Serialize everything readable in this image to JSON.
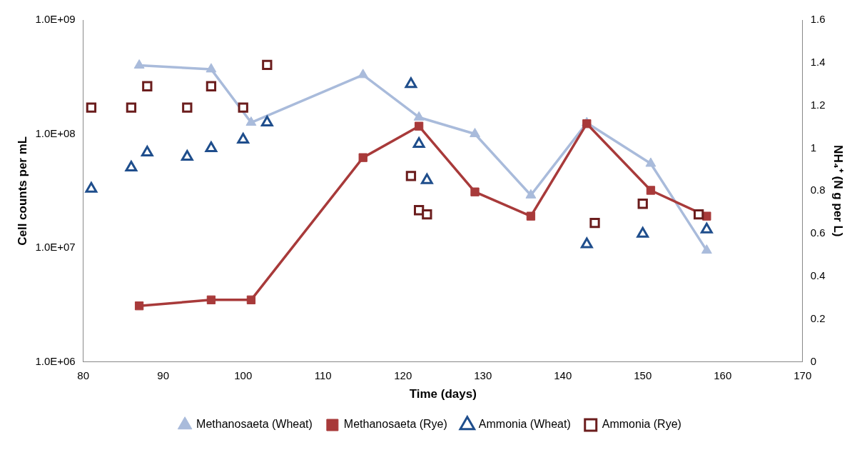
{
  "chart_data": {
    "type": "line",
    "xlabel": "Time (days)",
    "ylabel": "Cell counts per mL",
    "y2label": "NH₄⁺ (N g per L)",
    "xlim": [
      80,
      170
    ],
    "xticks": [
      80,
      90,
      100,
      110,
      120,
      130,
      140,
      150,
      160,
      170
    ],
    "log": "y",
    "ylim": [
      1000000,
      1000000000
    ],
    "yticks": [
      {
        "value": 1000000,
        "label": "1.0E+06"
      },
      {
        "value": 10000000,
        "label": "1.0E+07"
      },
      {
        "value": 100000000,
        "label": "1.0E+08"
      },
      {
        "value": 1000000000,
        "label": "1.0E+09"
      }
    ],
    "y2lim": [
      0,
      1.6
    ],
    "y2ticks": [
      0,
      0.2,
      0.4,
      0.6,
      0.8,
      1,
      1.2,
      1.4,
      1.6
    ],
    "grid": false,
    "legend": "bottom",
    "series": [
      {
        "name": "Methanosaeta (Wheat)",
        "marker": "triangle",
        "color": "#a9bbdb",
        "x": [
          87,
          96,
          101,
          115,
          122,
          129,
          136,
          143,
          151,
          158
        ],
        "values": [
          400000000,
          370000000,
          126000000,
          330000000,
          140000000,
          100000000,
          29000000,
          125000000,
          55000000,
          9500000
        ]
      },
      {
        "name": "Methanosaeta (Rye)",
        "marker": "square",
        "color": "#a83a3a",
        "x": [
          87,
          96,
          101,
          115,
          122,
          129,
          136,
          143,
          151,
          158
        ],
        "values": [
          3100000,
          3500000,
          3500000,
          62000000,
          117000000,
          31000000,
          19000000,
          123000000,
          32000000,
          19000000
        ]
      },
      {
        "name": "Ammonia (Wheat)",
        "type": "scatter",
        "marker": "triangle",
        "axis": "y2",
        "color": "#1f4e8c",
        "x": [
          81,
          86,
          88,
          93,
          96,
          100,
          103,
          121,
          122,
          123,
          143,
          150,
          158
        ],
        "values": [
          0.81,
          0.91,
          0.98,
          0.96,
          1.0,
          1.04,
          1.12,
          1.3,
          1.02,
          0.85,
          0.55,
          0.6,
          0.62
        ]
      },
      {
        "name": "Ammonia (Rye)",
        "type": "scatter",
        "marker": "square",
        "axis": "y2",
        "color": "#6b1d1d",
        "x": [
          81,
          86,
          88,
          93,
          96,
          100,
          103,
          121,
          122,
          123,
          144,
          150,
          157
        ],
        "values": [
          1.19,
          1.19,
          1.29,
          1.19,
          1.29,
          1.19,
          1.39,
          0.87,
          0.71,
          0.69,
          0.65,
          0.74,
          0.69
        ]
      }
    ]
  }
}
